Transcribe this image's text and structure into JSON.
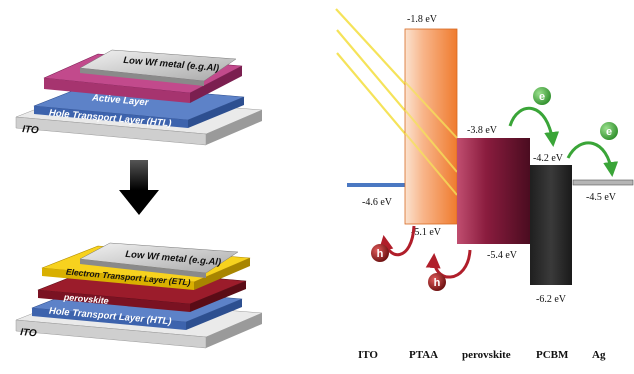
{
  "stack_top": {
    "metal": "Low Wf metal (e.g.Al)",
    "active": "Active Layer",
    "htl": "Hole Transport Layer (HTL)",
    "substrate": "ITO"
  },
  "stack_bottom": {
    "metal": "Low Wf metal (e.g.Al)",
    "etl": "Electron Transport Layer (ETL)",
    "perovskite": "perovskite",
    "htl": "Hole Transport Layer (HTL)",
    "substrate": "ITO"
  },
  "energy_diagram": {
    "levels": [
      {
        "id": "ito",
        "label": "-4.6 eV"
      },
      {
        "id": "ptaa-lumo",
        "label": "-1.8 eV"
      },
      {
        "id": "ptaa-homo",
        "label": "-5.1 eV"
      },
      {
        "id": "perov-cb",
        "label": "-3.8 eV"
      },
      {
        "id": "perov-vb",
        "label": "-5.4 eV"
      },
      {
        "id": "pcbm-lumo",
        "label": "-4.2 eV"
      },
      {
        "id": "pcbm-homo",
        "label": "-6.2 eV"
      },
      {
        "id": "ag",
        "label": "-4.5 eV"
      }
    ],
    "materials": [
      "ITO",
      "PTAA",
      "perovskite",
      "PCBM",
      "Ag"
    ],
    "carriers": {
      "electron": "e",
      "hole": "h"
    }
  },
  "colors": {
    "ptaa": "#f4873c",
    "perovskite": "#7a1535",
    "pcbm": "#2b2b2b",
    "ito_line": "#4a78c2",
    "electron": "#3aa538",
    "hole": "#9b1d1d",
    "light": "#f5e35a"
  }
}
